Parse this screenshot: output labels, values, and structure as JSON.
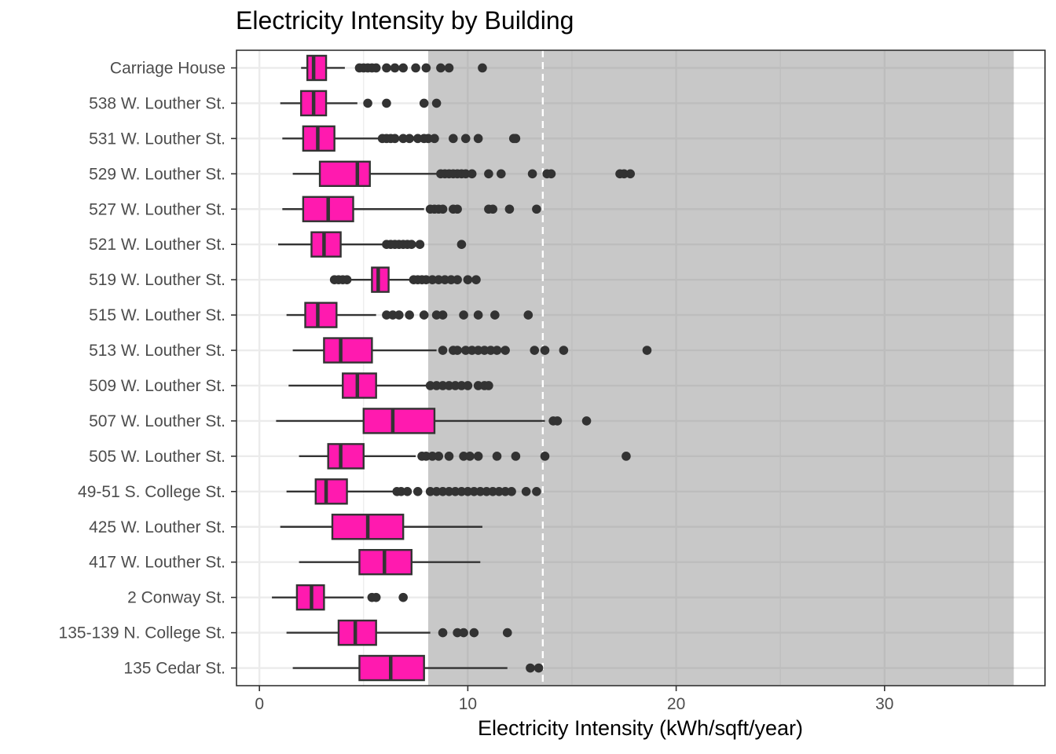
{
  "chart_data": {
    "type": "boxplot",
    "title": "Electricity Intensity by Building",
    "xlabel": "Electricity Intensity (kWh/sqft/year)",
    "ylabel": "",
    "xlim": [
      -1.1,
      37.7
    ],
    "xticks": [
      0,
      10,
      20,
      30
    ],
    "shaded_range": [
      8.1,
      36.2
    ],
    "reference_line": 13.6,
    "colors": {
      "box_fill": "#ff1aaf",
      "box_stroke": "#333333",
      "shade": "#c8c8c8",
      "grid": "#ebebeb",
      "ref_line": "#ffffff"
    },
    "categories": [
      "Carriage House",
      "538 W. Louther St.",
      "531 W. Louther St.",
      "529 W. Louther St.",
      "527 W. Louther St.",
      "521 W. Louther St.",
      "519 W. Louther St.",
      "515 W. Louther St.",
      "513 W. Louther St.",
      "509 W. Louther St.",
      "507 W. Louther St.",
      "505 W. Louther St.",
      "49-51 S. College St.",
      "425 W. Louther St.",
      "417 W. Louther St.",
      "2 Conway St.",
      "135-139 N. College St.",
      "135 Cedar St."
    ],
    "boxes": [
      {
        "building": "Carriage House",
        "whisker_low": 2.0,
        "q1": 2.3,
        "median": 2.6,
        "q3": 3.2,
        "whisker_high": 4.1,
        "outliers": [
          4.8,
          5.0,
          5.2,
          5.4,
          5.6,
          6.1,
          6.5,
          6.9,
          7.5,
          8.0,
          8.7,
          9.1,
          10.7
        ]
      },
      {
        "building": "538 W. Louther St.",
        "whisker_low": 1.0,
        "q1": 2.0,
        "median": 2.6,
        "q3": 3.2,
        "whisker_high": 4.7,
        "outliers": [
          5.2,
          6.1,
          7.9,
          8.5
        ]
      },
      {
        "building": "531 W. Louther St.",
        "whisker_low": 1.1,
        "q1": 2.1,
        "median": 2.8,
        "q3": 3.6,
        "whisker_high": 5.8,
        "outliers": [
          5.9,
          6.1,
          6.3,
          6.5,
          6.9,
          7.2,
          7.6,
          7.9,
          8.1,
          8.4,
          9.3,
          9.9,
          10.5,
          12.2,
          12.3
        ]
      },
      {
        "building": "529 W. Louther St.",
        "whisker_low": 1.6,
        "q1": 2.9,
        "median": 4.7,
        "q3": 5.3,
        "whisker_high": 8.5,
        "outliers": [
          8.7,
          8.9,
          9.1,
          9.3,
          9.5,
          9.7,
          9.9,
          10.2,
          11.0,
          11.6,
          13.1,
          13.8,
          14.0,
          17.3,
          17.5,
          17.8
        ]
      },
      {
        "building": "527 W. Louther St.",
        "whisker_low": 1.1,
        "q1": 2.1,
        "median": 3.3,
        "q3": 4.5,
        "whisker_high": 7.9,
        "outliers": [
          8.2,
          8.4,
          8.6,
          8.8,
          9.3,
          9.5,
          11.0,
          11.2,
          12.0,
          13.3
        ]
      },
      {
        "building": "521 W. Louther St.",
        "whisker_low": 0.9,
        "q1": 2.5,
        "median": 3.1,
        "q3": 3.9,
        "whisker_high": 5.9,
        "outliers": [
          6.1,
          6.3,
          6.5,
          6.7,
          6.9,
          7.1,
          7.3,
          7.7,
          9.7
        ]
      },
      {
        "building": "519 W. Louther St.",
        "whisker_low": 4.3,
        "q1": 5.4,
        "median": 5.7,
        "q3": 6.2,
        "whisker_high": 7.2,
        "outliers": [
          3.6,
          3.8,
          4.0,
          4.2,
          7.4,
          7.6,
          7.8,
          8.0,
          8.3,
          8.6,
          8.9,
          9.2,
          9.5,
          10.0,
          10.4
        ]
      },
      {
        "building": "515 W. Louther St.",
        "whisker_low": 1.3,
        "q1": 2.2,
        "median": 2.8,
        "q3": 3.7,
        "whisker_high": 5.6,
        "outliers": [
          6.1,
          6.4,
          6.7,
          7.2,
          7.9,
          8.5,
          8.8,
          9.8,
          10.5,
          11.3,
          12.9
        ]
      },
      {
        "building": "513 W. Louther St.",
        "whisker_low": 1.6,
        "q1": 3.1,
        "median": 3.9,
        "q3": 5.4,
        "whisker_high": 8.5,
        "outliers": [
          8.8,
          9.3,
          9.5,
          9.9,
          10.2,
          10.5,
          10.8,
          11.1,
          11.4,
          11.8,
          13.2,
          13.7,
          14.6,
          18.6
        ]
      },
      {
        "building": "509 W. Louther St.",
        "whisker_low": 1.4,
        "q1": 4.0,
        "median": 4.7,
        "q3": 5.6,
        "whisker_high": 8.0,
        "outliers": [
          8.2,
          8.5,
          8.8,
          9.1,
          9.4,
          9.7,
          10.0,
          10.5,
          10.8,
          11.0
        ]
      },
      {
        "building": "507 W. Louther St.",
        "whisker_low": 0.8,
        "q1": 5.0,
        "median": 6.4,
        "q3": 8.4,
        "whisker_high": 13.7,
        "outliers": [
          14.1,
          14.3,
          15.7
        ]
      },
      {
        "building": "505 W. Louther St.",
        "whisker_low": 1.9,
        "q1": 3.3,
        "median": 3.9,
        "q3": 5.0,
        "whisker_high": 7.5,
        "outliers": [
          7.8,
          8.0,
          8.3,
          8.6,
          9.1,
          9.8,
          10.1,
          10.5,
          11.4,
          12.3,
          13.7,
          17.6
        ]
      },
      {
        "building": "49-51 S. College St.",
        "whisker_low": 1.3,
        "q1": 2.7,
        "median": 3.2,
        "q3": 4.2,
        "whisker_high": 6.4,
        "outliers": [
          6.6,
          6.8,
          7.1,
          7.6,
          8.2,
          8.5,
          8.8,
          9.1,
          9.4,
          9.7,
          10.0,
          10.3,
          10.6,
          10.9,
          11.2,
          11.5,
          11.8,
          12.1,
          12.8,
          13.3
        ]
      },
      {
        "building": "425 W. Louther St.",
        "whisker_low": 1.0,
        "q1": 3.5,
        "median": 5.2,
        "q3": 6.9,
        "whisker_high": 10.7,
        "outliers": []
      },
      {
        "building": "417 W. Louther St.",
        "whisker_low": 1.9,
        "q1": 4.8,
        "median": 6.0,
        "q3": 7.3,
        "whisker_high": 10.6,
        "outliers": []
      },
      {
        "building": "2 Conway St.",
        "whisker_low": 0.6,
        "q1": 1.8,
        "median": 2.5,
        "q3": 3.1,
        "whisker_high": 5.0,
        "outliers": [
          5.4,
          5.6,
          6.9
        ]
      },
      {
        "building": "135-139 N. College St.",
        "whisker_low": 1.3,
        "q1": 3.8,
        "median": 4.6,
        "q3": 5.6,
        "whisker_high": 8.2,
        "outliers": [
          8.8,
          9.5,
          9.8,
          10.3,
          11.9
        ]
      },
      {
        "building": "135 Cedar St.",
        "whisker_low": 1.6,
        "q1": 4.8,
        "median": 6.3,
        "q3": 7.9,
        "whisker_high": 11.9,
        "outliers": [
          13.0,
          13.4
        ]
      }
    ]
  }
}
